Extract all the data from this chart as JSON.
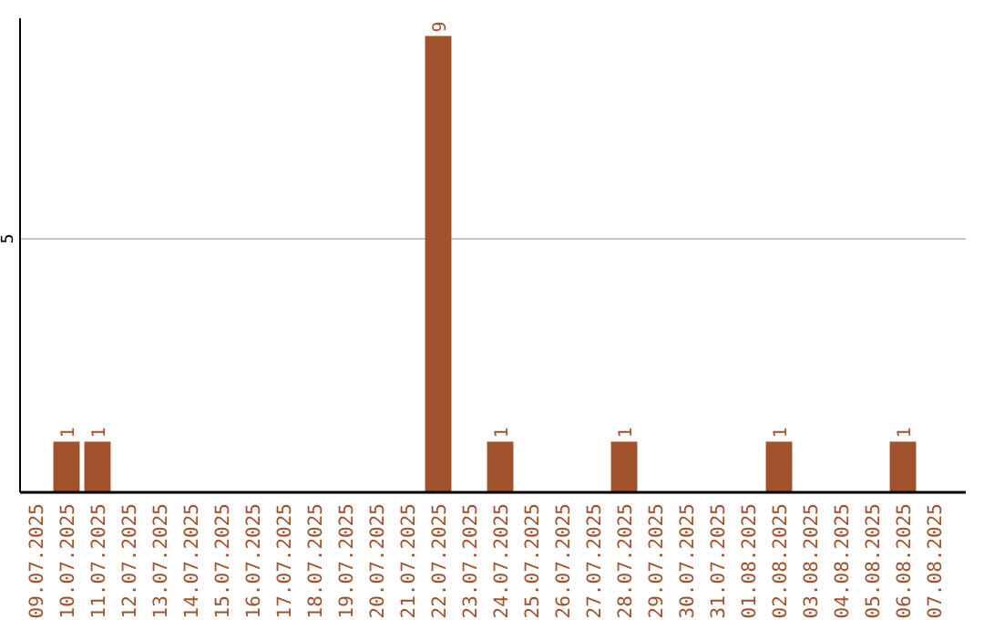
{
  "chart_data": {
    "type": "bar",
    "categories": [
      "09.07.2025",
      "10.07.2025",
      "11.07.2025",
      "12.07.2025",
      "13.07.2025",
      "14.07.2025",
      "15.07.2025",
      "16.07.2025",
      "17.07.2025",
      "18.07.2025",
      "19.07.2025",
      "20.07.2025",
      "21.07.2025",
      "22.07.2025",
      "23.07.2025",
      "24.07.2025",
      "25.07.2025",
      "26.07.2025",
      "27.07.2025",
      "28.07.2025",
      "29.07.2025",
      "30.07.2025",
      "31.07.2025",
      "01.08.2025",
      "02.08.2025",
      "03.08.2025",
      "04.08.2025",
      "05.08.2025",
      "06.08.2025",
      "07.08.2025"
    ],
    "values": [
      0,
      1,
      1,
      0,
      0,
      0,
      0,
      0,
      0,
      0,
      0,
      0,
      0,
      9,
      0,
      1,
      0,
      0,
      0,
      1,
      0,
      0,
      0,
      0,
      1,
      0,
      0,
      0,
      1,
      0
    ],
    "value_labels": [
      null,
      "1",
      "1",
      null,
      null,
      null,
      null,
      null,
      null,
      null,
      null,
      null,
      null,
      "9",
      null,
      "1",
      null,
      null,
      null,
      "1",
      null,
      null,
      null,
      null,
      "1",
      null,
      null,
      null,
      "1",
      null
    ],
    "color": "#a0522d",
    "ylim": [
      0,
      9.35
    ],
    "yticks": [
      5
    ],
    "grid": "y"
  }
}
